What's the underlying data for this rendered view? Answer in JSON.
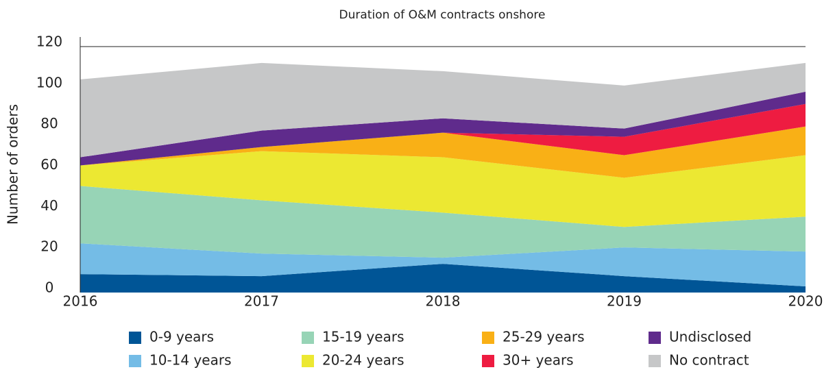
{
  "chart_data": {
    "type": "stacked_area",
    "title": "Duration of O&M contracts onshore",
    "y_label": "Number of orders",
    "x": [
      2016,
      2017,
      2018,
      2019,
      2020
    ],
    "xlim": [
      2016,
      2020
    ],
    "xticks": [
      2016,
      2017,
      2018,
      2019,
      2020
    ],
    "ylim": [
      0,
      120
    ],
    "yticks": [
      0,
      20,
      40,
      60,
      80,
      100,
      120
    ],
    "series": [
      {
        "name": "0-9 years",
        "color": "#005596",
        "values": [
          9,
          8,
          14,
          8,
          3
        ]
      },
      {
        "name": "10-14 years",
        "color": "#74bce6",
        "values": [
          15,
          11,
          3,
          14,
          17
        ]
      },
      {
        "name": "15-19 years",
        "color": "#97d4b6",
        "values": [
          28,
          26,
          22,
          10,
          17
        ]
      },
      {
        "name": "20-24 years",
        "color": "#ece832",
        "values": [
          10,
          24,
          27,
          24,
          30
        ]
      },
      {
        "name": "25-29 years",
        "color": "#f9b016",
        "values": [
          0,
          2,
          12,
          11,
          14
        ]
      },
      {
        "name": "30+ years",
        "color": "#ee1c41",
        "values": [
          0,
          0,
          0,
          9,
          11
        ]
      },
      {
        "name": "Undisclosed",
        "color": "#5f2b8c",
        "values": [
          4,
          8,
          7,
          4,
          6
        ]
      },
      {
        "name": "No contract",
        "color": "#c6c7c8",
        "values": [
          38,
          33,
          23,
          21,
          14
        ]
      }
    ]
  }
}
